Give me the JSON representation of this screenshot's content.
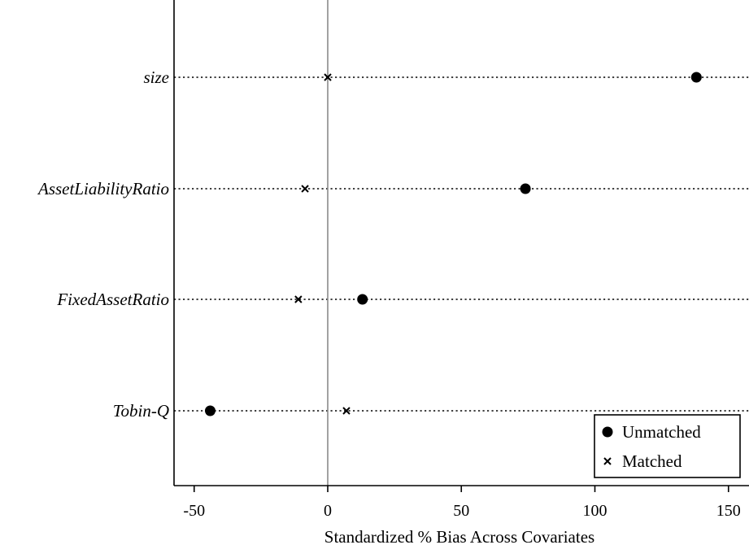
{
  "chart_data": {
    "type": "scatter",
    "title": "",
    "xlabel": "Standardized % Bias Across Covariates",
    "ylabel": "",
    "categories": [
      "size",
      "AssetLiabilityRatio",
      "FixedAssetRatio",
      "Tobin-Q"
    ],
    "xlim": [
      -57,
      157
    ],
    "xticks": [
      -50,
      0,
      50,
      100,
      150
    ],
    "xtick_labels": [
      "-50",
      "0",
      "50",
      "100",
      "150"
    ],
    "reference_line_x": 0,
    "grid": false,
    "series": [
      {
        "name": "Unmatched",
        "marker": "filled-circle",
        "values": [
          138,
          74,
          13,
          -44
        ]
      },
      {
        "name": "Matched",
        "marker": "x-cross",
        "values": [
          0,
          -8.5,
          -11,
          7
        ]
      }
    ],
    "legend_position": "bottom-right"
  }
}
